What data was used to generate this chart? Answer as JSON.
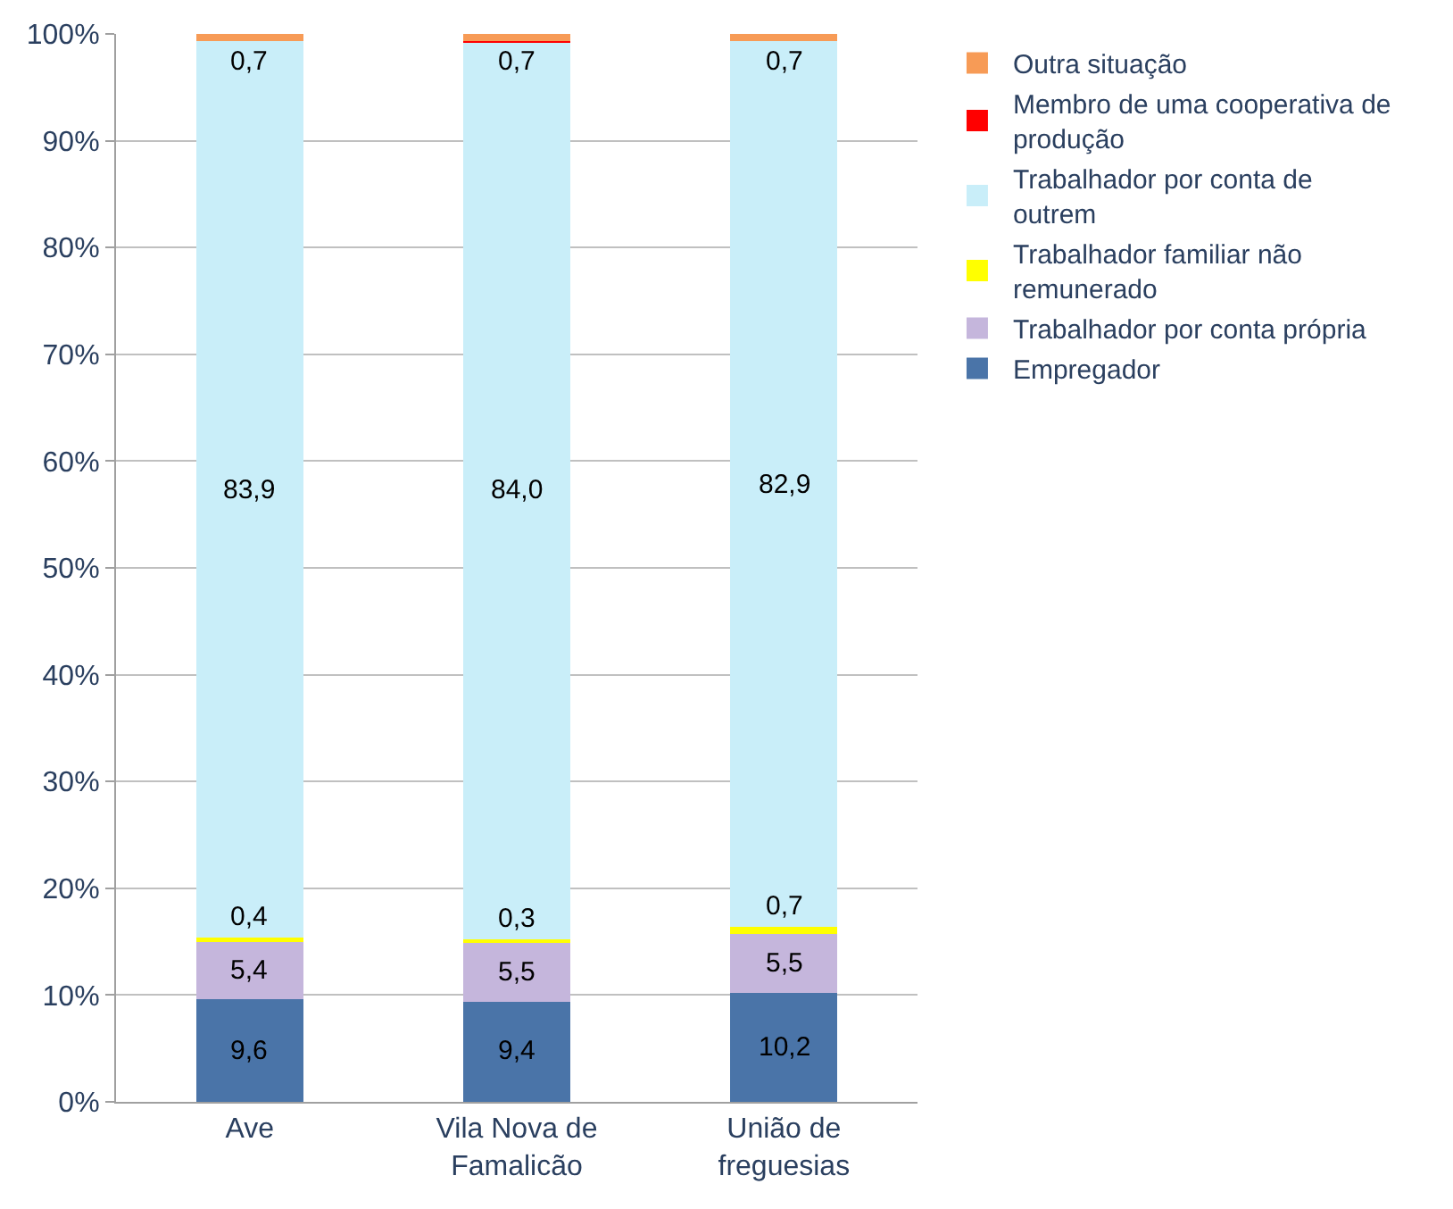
{
  "chart_data": {
    "type": "bar",
    "stacked": true,
    "categories": [
      "Ave",
      "Vila Nova de Famalicão",
      "União de freguesias"
    ],
    "series": [
      {
        "name": "Empregador",
        "color": "#4a74a8",
        "values": [
          9.6,
          9.4,
          10.2
        ],
        "value_labels": [
          "9,6",
          "9,4",
          "10,2"
        ]
      },
      {
        "name": "Trabalhador por conta própria",
        "color": "#c5b6dc",
        "values": [
          5.4,
          5.5,
          5.5
        ],
        "value_labels": [
          "5,4",
          "5,5",
          "5,5"
        ]
      },
      {
        "name": "Trabalhador familiar não remunerado",
        "color": "#ffff00",
        "values": [
          0.4,
          0.3,
          0.7
        ],
        "value_labels": [
          "0,4",
          "0,3",
          "0,7"
        ]
      },
      {
        "name": "Trabalhador por conta de outrem",
        "color": "#c9eef9",
        "values": [
          83.9,
          84.0,
          82.9
        ],
        "value_labels": [
          "83,9",
          "84,0",
          "82,9"
        ]
      },
      {
        "name": "Membro de uma cooperativa de produção",
        "color": "#ff0000",
        "values": [
          0.0,
          0.1,
          0.0
        ],
        "value_labels": [
          null,
          null,
          null
        ]
      },
      {
        "name": "Outra situação",
        "color": "#f79b56",
        "values": [
          0.7,
          0.7,
          0.7
        ],
        "value_labels": [
          "0,7",
          "0,7",
          "0,7"
        ]
      }
    ],
    "ylim": [
      0,
      100
    ],
    "yticks": [
      {
        "value": 0,
        "label": "0%"
      },
      {
        "value": 10,
        "label": "10%"
      },
      {
        "value": 20,
        "label": "20%"
      },
      {
        "value": 30,
        "label": "30%"
      },
      {
        "value": 40,
        "label": "40%"
      },
      {
        "value": 50,
        "label": "50%"
      },
      {
        "value": 60,
        "label": "60%"
      },
      {
        "value": 70,
        "label": "70%"
      },
      {
        "value": 80,
        "label": "80%"
      },
      {
        "value": 90,
        "label": "90%"
      },
      {
        "value": 100,
        "label": "100%"
      }
    ],
    "grid": "y",
    "legend": "right"
  }
}
